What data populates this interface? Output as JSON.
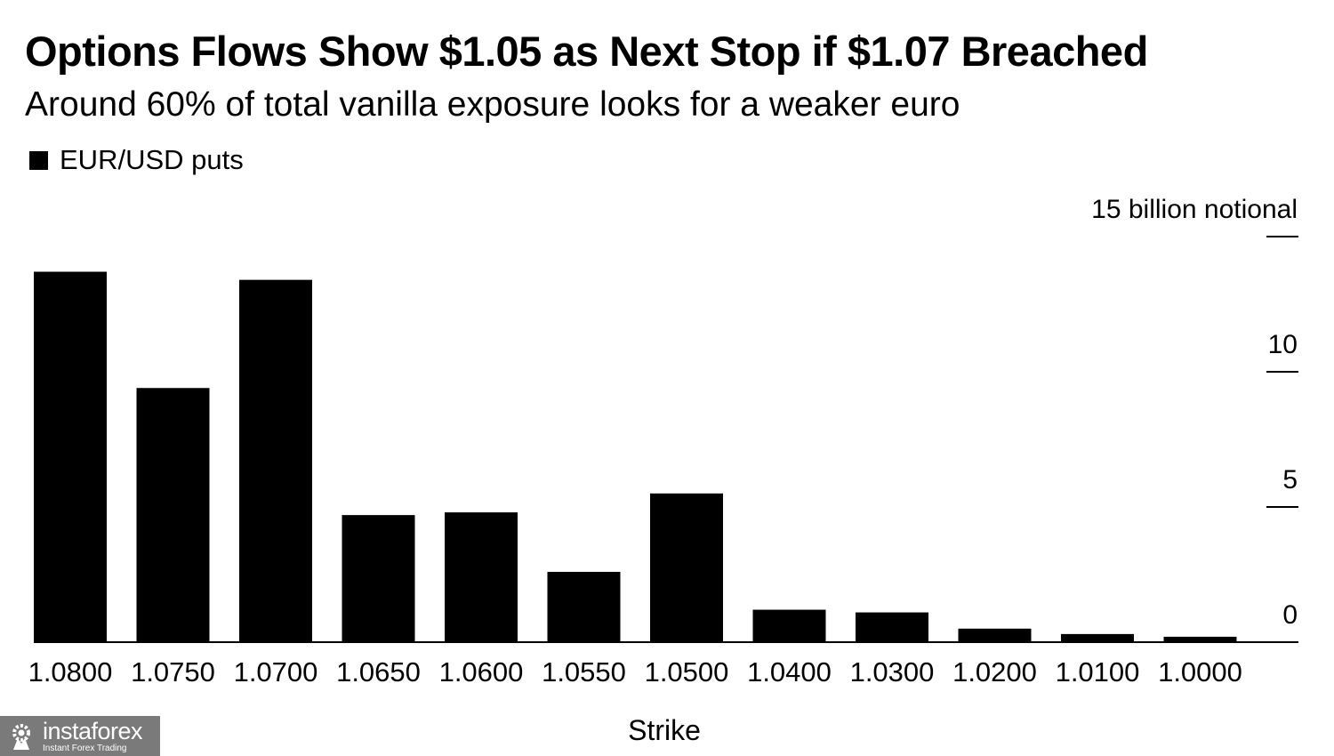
{
  "chart_data": {
    "type": "bar",
    "title": "Options Flows Show $1.05 as Next Stop if $1.07 Breached",
    "subtitle": "Around 60% of total vanilla exposure looks for a weaker euro",
    "legend": [
      {
        "name": "EUR/USD puts",
        "color": "#000000"
      }
    ],
    "xlabel": "Strike",
    "ylabel": "",
    "categories": [
      "1.0800",
      "1.0750",
      "1.0700",
      "1.0650",
      "1.0600",
      "1.0550",
      "1.0500",
      "1.0400",
      "1.0300",
      "1.0200",
      "1.0100",
      "1.0000"
    ],
    "series": [
      {
        "name": "EUR/USD puts",
        "values": [
          13.7,
          9.4,
          13.4,
          4.7,
          4.8,
          2.6,
          5.5,
          1.2,
          1.1,
          0.5,
          0.3,
          0.2
        ]
      }
    ],
    "ylim": [
      0,
      15
    ],
    "yticks": [
      {
        "value": 15,
        "label": "15 billion notional"
      },
      {
        "value": 10,
        "label": "10"
      },
      {
        "value": 5,
        "label": "5"
      },
      {
        "value": 0,
        "label": "0"
      }
    ],
    "grid": false,
    "y_axis_side": "right",
    "legend_position": "top-left"
  },
  "watermark": {
    "brand": "instaforex",
    "tagline": "Instant Forex Trading",
    "background": "#7a7a7a"
  }
}
